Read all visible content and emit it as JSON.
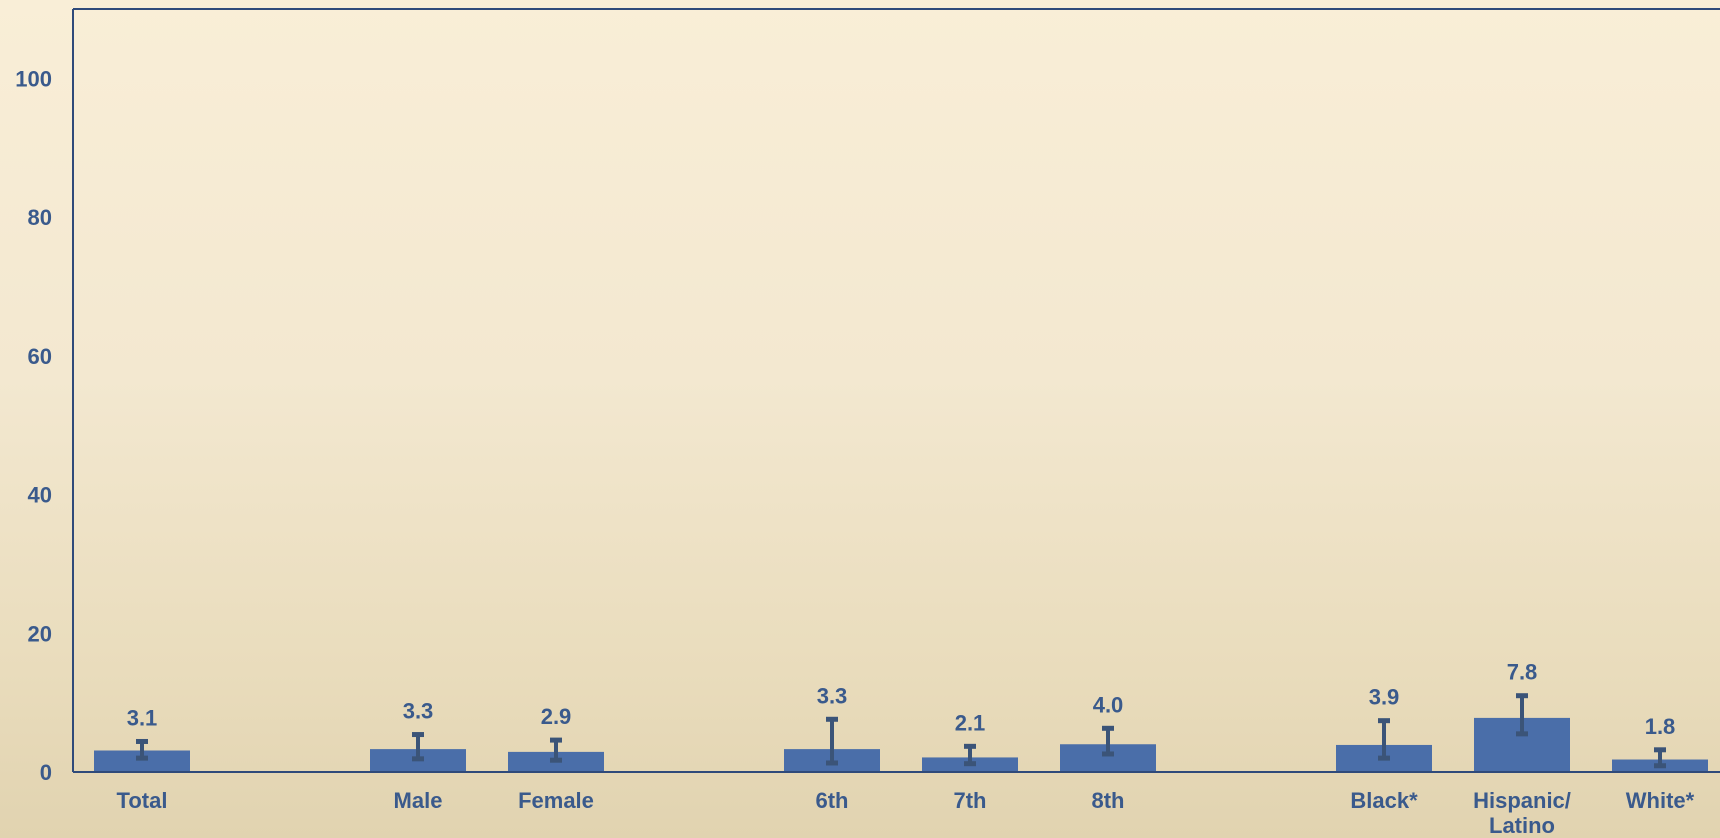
{
  "chart_data": {
    "type": "bar",
    "categories": [
      "Total",
      "Male",
      "Female",
      "6th",
      "7th",
      "8th",
      "Black*",
      "Hispanic/\nLatino",
      "White*"
    ],
    "groups": [
      [
        "Total"
      ],
      [
        "Male",
        "Female"
      ],
      [
        "6th",
        "7th",
        "8th"
      ],
      [
        "Black*",
        "Hispanic/\nLatino",
        "White*"
      ]
    ],
    "values": [
      3.1,
      3.3,
      2.9,
      3.3,
      2.1,
      4.0,
      3.9,
      7.8,
      1.8
    ],
    "value_labels": [
      "3.1",
      "3.3",
      "2.9",
      "3.3",
      "2.1",
      "4.0",
      "3.9",
      "7.8",
      "1.8"
    ],
    "error_bars": [
      {
        "low": 2.0,
        "high": 4.4
      },
      {
        "low": 1.9,
        "high": 5.4
      },
      {
        "low": 1.7,
        "high": 4.6
      },
      {
        "low": 1.3,
        "high": 7.6
      },
      {
        "low": 1.2,
        "high": 3.7
      },
      {
        "low": 2.6,
        "high": 6.3
      },
      {
        "low": 2.0,
        "high": 7.4
      },
      {
        "low": 5.5,
        "high": 11.0
      },
      {
        "low": 0.9,
        "high": 3.2
      }
    ],
    "ylim": [
      0,
      110
    ],
    "yticks": [
      0,
      20,
      40,
      60,
      80,
      100
    ],
    "title": "",
    "xlabel": "",
    "ylabel": "",
    "grid": false,
    "colors": {
      "bar": "#4a6ea9",
      "error_bar": "#3b5478",
      "axis": "#2f4a7a",
      "text": "#3a5a8c"
    }
  }
}
